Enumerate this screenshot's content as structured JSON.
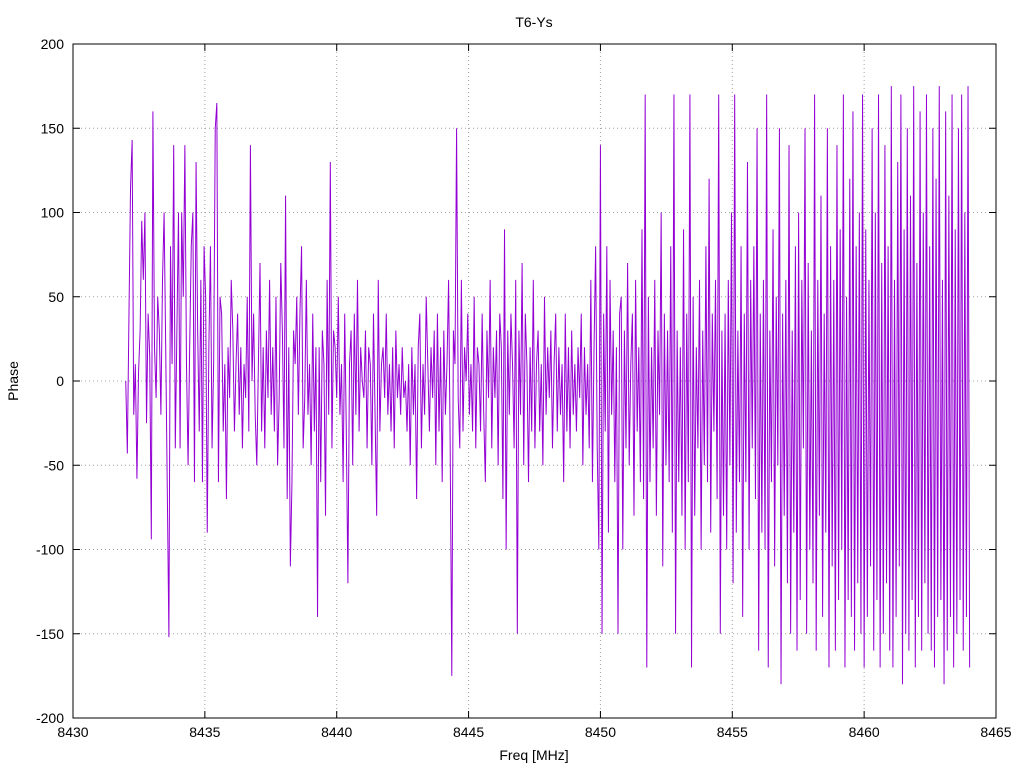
{
  "chart_data": {
    "type": "line",
    "title": "T6-Ys",
    "xlabel": "Freq [MHz]",
    "ylabel": "Phase",
    "xlim": [
      8430,
      8465
    ],
    "ylim": [
      -200,
      200
    ],
    "x_ticks": [
      "8430",
      "8435",
      "8440",
      "8445",
      "8450",
      "8455",
      "8460",
      "8465"
    ],
    "y_ticks": [
      "200",
      "150",
      "100",
      "50",
      "0",
      "-50",
      "-100",
      "-150",
      "-200"
    ],
    "grid": true,
    "series": [
      {
        "color": "#9400d3",
        "x_start": 8432.0,
        "x_end": 8464.0,
        "values": [
          0,
          -43,
          38,
          115,
          143,
          -20,
          10,
          -58,
          5,
          30,
          95,
          60,
          100,
          -25,
          40,
          15,
          -94,
          160,
          20,
          -10,
          50,
          30,
          -20,
          60,
          100,
          20,
          -65,
          -152,
          80,
          10,
          140,
          -40,
          30,
          100,
          -40,
          100,
          50,
          140,
          10,
          -50,
          20,
          80,
          100,
          -60,
          130,
          30,
          -30,
          60,
          -60,
          80,
          50,
          -90,
          20,
          80,
          -40,
          10,
          150,
          165,
          -60,
          50,
          40,
          -30,
          10,
          -70,
          20,
          -10,
          60,
          30,
          -30,
          10,
          40,
          -20,
          20,
          -40,
          10,
          -10,
          50,
          -30,
          140,
          0,
          40,
          -20,
          -50,
          10,
          70,
          -30,
          20,
          -40,
          30,
          -10,
          60,
          -20,
          20,
          -30,
          50,
          -50,
          -10,
          70,
          30,
          -40,
          110,
          -70,
          20,
          -110,
          -60,
          30,
          10,
          50,
          -20,
          40,
          80,
          -40,
          -10,
          60,
          -20,
          10,
          -50,
          40,
          -30,
          20,
          -140,
          20,
          -60,
          30,
          10,
          -80,
          60,
          -20,
          130,
          -40,
          30,
          20,
          -10,
          50,
          -20,
          10,
          -60,
          40,
          -30,
          -120,
          10,
          30,
          -50,
          40,
          -20,
          60,
          -30,
          20,
          0,
          -10,
          30,
          -40,
          20,
          10,
          -50,
          40,
          -20,
          -80,
          60,
          -30,
          10,
          20,
          -10,
          40,
          -20,
          10,
          -30,
          20,
          -40,
          30,
          -10,
          10,
          -20,
          20,
          -10,
          0,
          -30,
          10,
          -50,
          20,
          -20,
          10,
          -70,
          20,
          40,
          -40,
          10,
          -20,
          50,
          10,
          -30,
          20,
          -10,
          30,
          -50,
          40,
          -30,
          20,
          -60,
          30,
          -20,
          10,
          60,
          -40,
          -175,
          30,
          10,
          150,
          -10,
          -40,
          60,
          -30,
          20,
          0,
          40,
          -20,
          10,
          -30,
          50,
          -40,
          20,
          10,
          -30,
          40,
          -20,
          -60,
          30,
          -10,
          60,
          -40,
          20,
          -10,
          30,
          -50,
          40,
          20,
          -70,
          90,
          -100,
          30,
          -20,
          40,
          10,
          -40,
          60,
          -150,
          30,
          -20,
          70,
          -50,
          40,
          10,
          -60,
          20,
          -30,
          60,
          -40,
          10,
          30,
          -30,
          10,
          -50,
          50,
          -20,
          20,
          -10,
          30,
          -40,
          10,
          40,
          -30,
          20,
          -20,
          10,
          -60,
          40,
          -30,
          20,
          -40,
          30,
          -20,
          10,
          -30,
          20,
          -10,
          40,
          -50,
          20,
          -20,
          10,
          -40,
          60,
          -60,
          20,
          80,
          -40,
          -100,
          140,
          -150,
          40,
          -30,
          80,
          -90,
          60,
          -20,
          30,
          -60,
          20,
          -150,
          40,
          50,
          -100,
          30,
          -40,
          70,
          -50,
          10,
          40,
          -80,
          60,
          -30,
          20,
          -60,
          90,
          -70,
          170,
          -170,
          50,
          -60,
          20,
          -40,
          60,
          -80,
          30,
          -20,
          100,
          -110,
          40,
          -50,
          30,
          -60,
          80,
          -90,
          170,
          -150,
          30,
          -60,
          20,
          -80,
          90,
          -100,
          40,
          -60,
          170,
          -170,
          50,
          -80,
          20,
          -40,
          60,
          -100,
          30,
          -50,
          80,
          -60,
          120,
          -90,
          40,
          -30,
          60,
          -70,
          170,
          -150,
          30,
          -80,
          40,
          -100,
          60,
          -50,
          100,
          -120,
          170,
          -90,
          30,
          -60,
          80,
          -140,
          40,
          -60,
          130,
          -100,
          60,
          -40,
          80,
          -70,
          150,
          -160,
          40,
          -90,
          60,
          -100,
          170,
          -170,
          30,
          -60,
          90,
          -110,
          50,
          -50,
          150,
          -180,
          40,
          -80,
          60,
          -120,
          140,
          -150,
          30,
          -90,
          80,
          -160,
          100,
          -130,
          60,
          -40,
          150,
          -150,
          70,
          -100,
          30,
          -120,
          170,
          -160,
          60,
          -80,
          110,
          -140,
          40,
          -90,
          150,
          -170,
          80,
          -110,
          60,
          -160,
          140,
          -130,
          90,
          -100,
          170,
          -170,
          50,
          -130,
          120,
          -140,
          160,
          -160,
          80,
          -120,
          100,
          -150,
          170,
          -170,
          90,
          -140,
          60,
          -110,
          150,
          -160,
          100,
          -130,
          170,
          -170,
          70,
          -150,
          140,
          -120,
          80,
          -160,
          175,
          -170,
          60,
          -140,
          130,
          -110,
          170,
          -180,
          90,
          -150,
          150,
          -160,
          110,
          -130,
          175,
          -170,
          70,
          -140,
          160,
          -160,
          100,
          -120,
          170,
          -150,
          80,
          -160,
          150,
          -170,
          120,
          -140,
          175,
          -130,
          60,
          -180,
          160,
          -160,
          110,
          -140,
          170,
          -170,
          90,
          -150,
          150,
          -130,
          170,
          -160,
          100,
          -140,
          175,
          -170
        ]
      }
    ]
  }
}
